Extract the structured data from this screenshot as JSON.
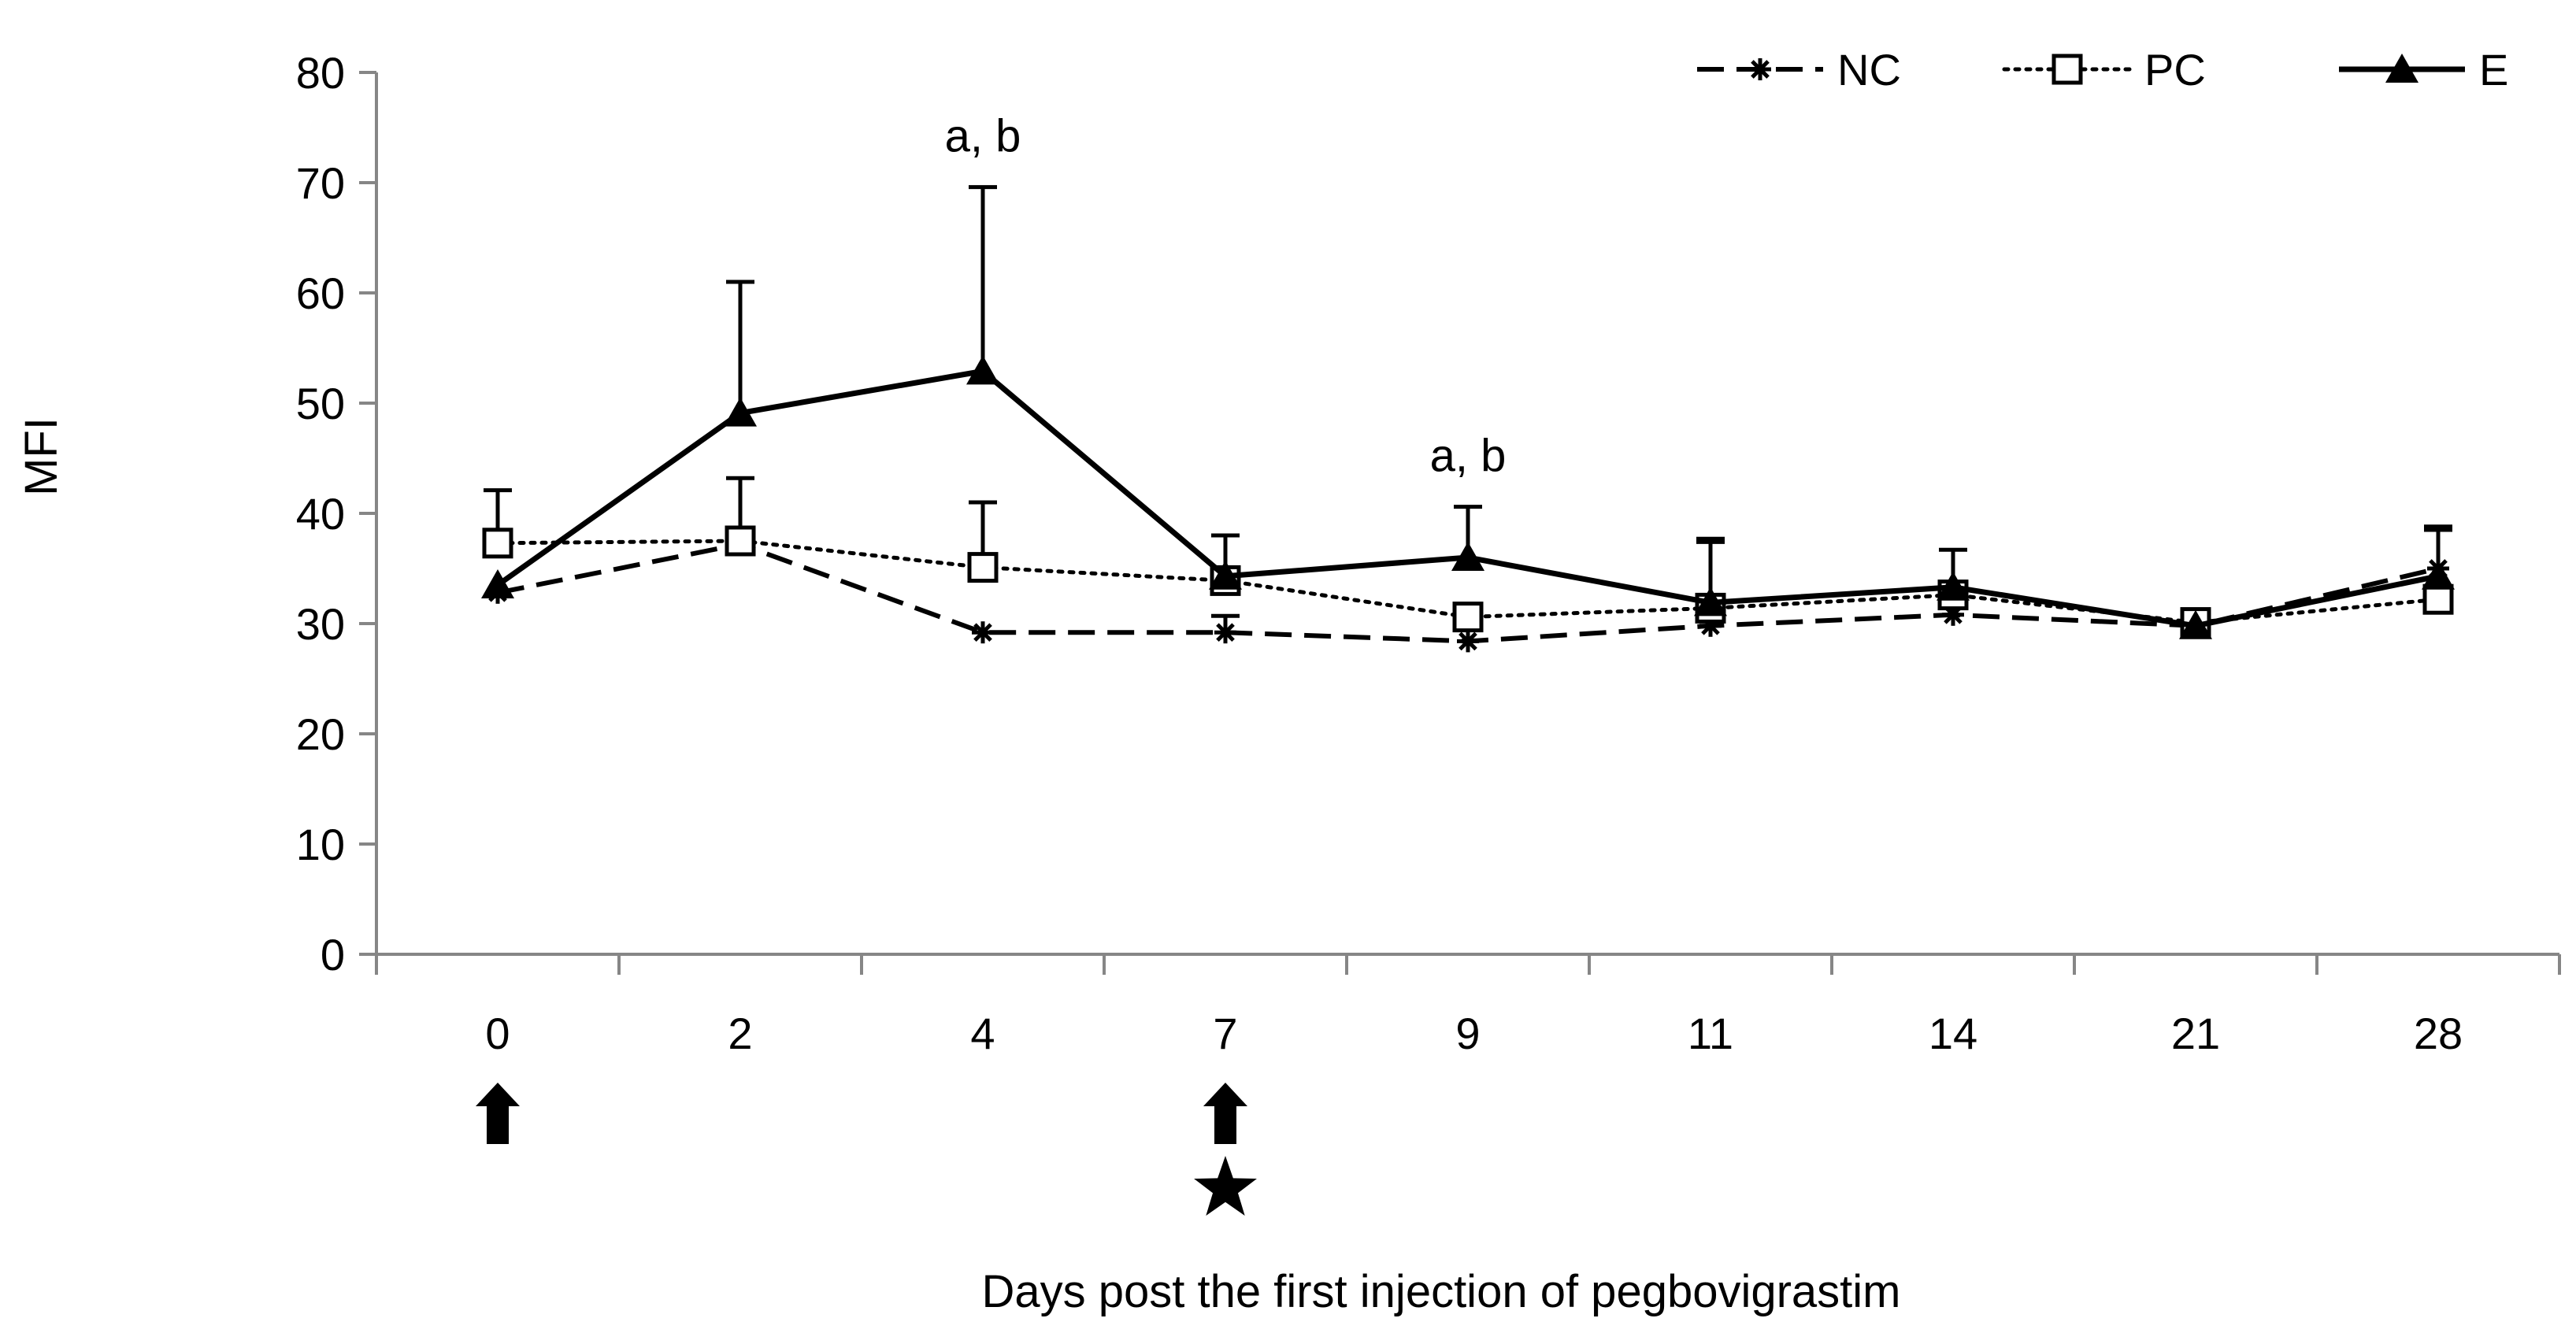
{
  "chart_data": {
    "type": "line",
    "title": "",
    "xlabel": "Days post the first injection of pegbovigrastim",
    "ylabel": "MFI",
    "ylim": [
      0,
      80
    ],
    "yticks": [
      "0",
      "10",
      "20",
      "30",
      "40",
      "50",
      "60",
      "70",
      "80"
    ],
    "categories": [
      "0",
      "2",
      "4",
      "7",
      "9",
      "11",
      "14",
      "21",
      "28"
    ],
    "grid": false,
    "legend_position": "top-right",
    "series": [
      {
        "name": "NC",
        "line_style": "dashed",
        "marker": "asterisk",
        "values": [
          32.8,
          37.2,
          29.2,
          29.2,
          28.4,
          29.8,
          30.8,
          29.8,
          35.0
        ],
        "error_upper": [
          0,
          0,
          0,
          1.5,
          0,
          0,
          0,
          0,
          3.5
        ]
      },
      {
        "name": "PC",
        "line_style": "dotted",
        "marker": "open-square",
        "values": [
          37.3,
          37.5,
          35.1,
          33.9,
          30.6,
          31.4,
          32.6,
          30.1,
          32.2
        ],
        "error_upper": [
          4.8,
          5.7,
          5.9,
          0,
          0,
          6.3,
          0,
          0,
          0
        ]
      },
      {
        "name": "E",
        "line_style": "solid",
        "marker": "filled-triangle",
        "values": [
          33.5,
          49.1,
          52.9,
          34.3,
          36.0,
          31.9,
          33.3,
          29.8,
          34.3
        ],
        "error_upper": [
          0,
          11.9,
          16.7,
          3.7,
          4.6,
          5.5,
          3.4,
          0,
          4.5
        ]
      }
    ],
    "annotations": [
      {
        "category": "4",
        "text": "a, b"
      },
      {
        "category": "9",
        "text": "a, b"
      }
    ],
    "markers_below_axis": [
      {
        "category": "0",
        "symbols": [
          "arrow-up"
        ]
      },
      {
        "category": "7",
        "symbols": [
          "arrow-up",
          "star"
        ]
      }
    ]
  }
}
